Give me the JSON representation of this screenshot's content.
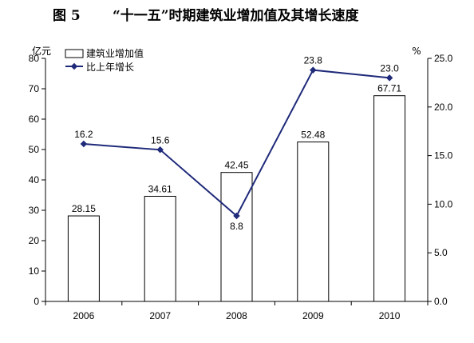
{
  "figure": {
    "number": "图 5",
    "title": "“十一五”时期建筑业增加值及其增长速度"
  },
  "chart_data": {
    "type": "bar",
    "categories": [
      "2006",
      "2007",
      "2008",
      "2009",
      "2010"
    ],
    "series": [
      {
        "name": "建筑业增加值",
        "type": "bar",
        "axis": "left",
        "values": [
          28.15,
          34.61,
          42.45,
          52.48,
          67.71
        ]
      },
      {
        "name": "比上年增长",
        "type": "line",
        "axis": "right",
        "values": [
          16.2,
          15.6,
          8.8,
          23.8,
          23.0
        ]
      }
    ],
    "y_left": {
      "unit": "亿元",
      "lim": [
        0,
        80
      ],
      "ticks": [
        "0",
        "10",
        "20",
        "30",
        "40",
        "50",
        "60",
        "70",
        "80"
      ]
    },
    "y_right": {
      "unit": "%",
      "lim": [
        0,
        25
      ],
      "ticks": [
        "0.0",
        "5.0",
        "10.0",
        "15.0",
        "20.0",
        "25.0"
      ]
    },
    "bar_labels": [
      "28.15",
      "34.61",
      "42.45",
      "52.48",
      "67.71"
    ],
    "line_labels": [
      "16.2",
      "15.6",
      "8.8",
      "23.8",
      "23.0"
    ],
    "grid": false,
    "legend_position": "top-left",
    "colors": {
      "bar_fill": "#ffffff",
      "bar_stroke": "#000000",
      "line": "#1f2a7a",
      "marker": "#1f2a7a"
    }
  }
}
